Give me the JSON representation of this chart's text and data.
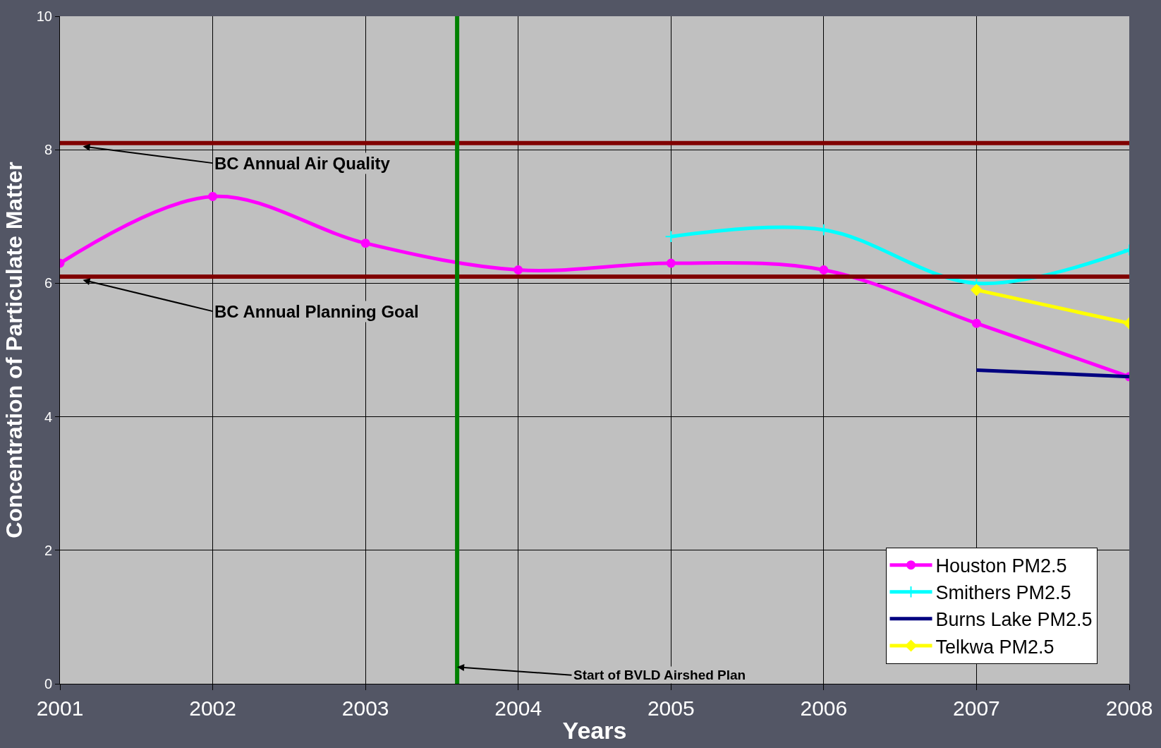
{
  "chart_data": {
    "type": "line",
    "xlabel": "Years",
    "ylabel": "Concentration of Particulate Matter",
    "xlim": [
      2001,
      2008
    ],
    "xticks": [
      2001,
      2002,
      2003,
      2004,
      2005,
      2006,
      2007,
      2008
    ],
    "ylim": [
      0,
      10
    ],
    "yticks": [
      0,
      2,
      4,
      6,
      8,
      10
    ],
    "grid": true,
    "legend": "bottom right",
    "series": [
      {
        "name": "Houston PM2.5",
        "color": "#ff00ff",
        "marker": "circle",
        "x": [
          2001,
          2002,
          2003,
          2004,
          2005,
          2006,
          2007,
          2008
        ],
        "values": [
          6.3,
          7.3,
          6.6,
          6.2,
          6.3,
          6.2,
          5.4,
          4.6
        ]
      },
      {
        "name": "Smithers PM2.5",
        "color": "#00ffff",
        "marker": "cross",
        "x": [
          2005,
          2006,
          2007,
          2008
        ],
        "values": [
          6.7,
          6.8,
          6.0,
          6.5
        ]
      },
      {
        "name": "Burns Lake PM2.5",
        "color": "#000080",
        "marker": "none",
        "x": [
          2007,
          2008
        ],
        "values": [
          4.7,
          4.6
        ]
      },
      {
        "name": "Telkwa PM2.5",
        "color": "#ffff00",
        "marker": "diamond",
        "x": [
          2007,
          2008
        ],
        "values": [
          5.9,
          5.4
        ]
      }
    ],
    "ref_lines": [
      {
        "axis": "y",
        "value": 8.1,
        "color": "#800000",
        "label": "BC Annual Air Quality"
      },
      {
        "axis": "y",
        "value": 6.1,
        "color": "#800000",
        "label": "BC Annual Planning Goal"
      },
      {
        "axis": "x",
        "value": 2003.6,
        "color": "#008000",
        "label": "Start of BVLD Airshed Plan"
      }
    ]
  }
}
